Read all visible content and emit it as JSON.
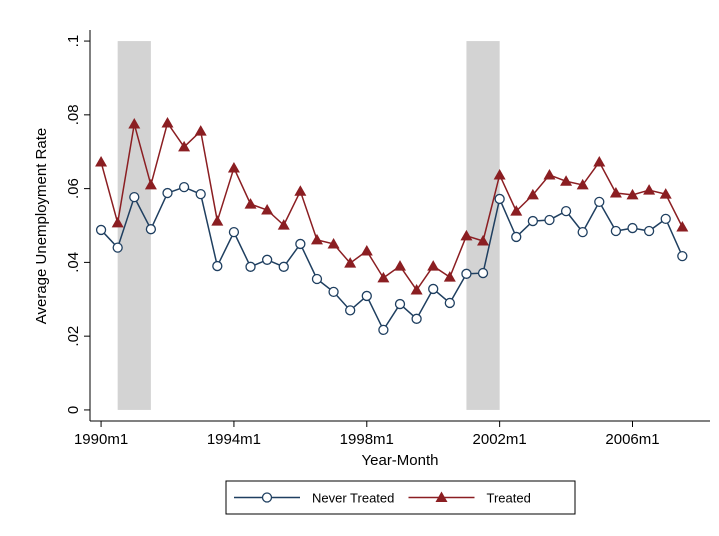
{
  "chart_data": {
    "type": "line",
    "x_label": "Year-Month",
    "y_label": "Average Unemployment Rate",
    "x": [
      0,
      6,
      12,
      18,
      24,
      30,
      36,
      42,
      48,
      54,
      60,
      66,
      72,
      78,
      84,
      90,
      96,
      102,
      108,
      114,
      120,
      126,
      132,
      138,
      144,
      150,
      156,
      162,
      168,
      174,
      180,
      186,
      192,
      198,
      204,
      210
    ],
    "series": [
      {
        "name": "Never Treated",
        "color": "#1f3f60",
        "marker": "circle",
        "values": [
          0.0488,
          0.044,
          0.0577,
          0.049,
          0.0588,
          0.0604,
          0.0585,
          0.039,
          0.0482,
          0.0388,
          0.0407,
          0.0388,
          0.045,
          0.0355,
          0.032,
          0.027,
          0.0309,
          0.0217,
          0.0287,
          0.0247,
          0.0328,
          0.029,
          0.0369,
          0.0371,
          0.0572,
          0.0469,
          0.0512,
          0.0515,
          0.0539,
          0.0482,
          0.0564,
          0.0485,
          0.0493,
          0.0485,
          0.0518,
          0.0417
        ]
      },
      {
        "name": "Treated",
        "color": "#8b1e22",
        "marker": "triangle",
        "values": [
          0.0672,
          0.0507,
          0.0775,
          0.061,
          0.0778,
          0.0713,
          0.0756,
          0.0512,
          0.0656,
          0.0558,
          0.0542,
          0.0501,
          0.0593,
          0.0461,
          0.045,
          0.0398,
          0.0431,
          0.0358,
          0.039,
          0.0325,
          0.039,
          0.036,
          0.0472,
          0.0458,
          0.0637,
          0.0539,
          0.0583,
          0.0637,
          0.062,
          0.061,
          0.0672,
          0.0588,
          0.0583,
          0.0596,
          0.0585,
          0.0496
        ]
      }
    ],
    "shaded": [
      [
        6,
        18
      ],
      [
        132,
        144
      ]
    ],
    "shade_color": "#d3d3d3",
    "xlim": [
      -4,
      220
    ],
    "xticks": [
      {
        "value": 0,
        "label": "1990m1"
      },
      {
        "value": 48,
        "label": "1994m1"
      },
      {
        "value": 96,
        "label": "1998m1"
      },
      {
        "value": 144,
        "label": "2002m1"
      },
      {
        "value": 192,
        "label": "2006m1"
      }
    ],
    "ylim": [
      -0.003,
      0.103
    ],
    "yticks": [
      0,
      {
        "value": 0.02,
        "label": ".02"
      },
      {
        "value": 0.04,
        "label": ".04"
      },
      {
        "value": 0.06,
        "label": ".06"
      },
      {
        "value": 0.08,
        "label": ".08"
      },
      {
        "value": 0.1,
        "label": ".1"
      }
    ],
    "grid": false,
    "legend": "bottom"
  }
}
